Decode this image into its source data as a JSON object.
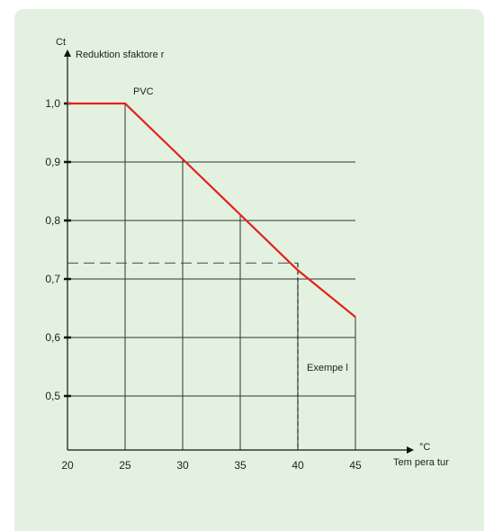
{
  "chart_data": {
    "type": "line",
    "y_unit": "Ct",
    "ylabel": "Reduktion sfaktore r",
    "x_unit": "°C",
    "xlabel": "Tem pera tur",
    "x_ticks": [
      "20",
      "25",
      "30",
      "35",
      "40",
      "45"
    ],
    "y_ticks": [
      "1,0",
      "0,9",
      "0,8",
      "0,7",
      "0,6",
      "0,5"
    ],
    "xlim": [
      20,
      47
    ],
    "ylim": [
      0.4,
      1.05
    ],
    "grid": true,
    "series": [
      {
        "name": "PVC",
        "color": "#e32219",
        "x": [
          20,
          25,
          30,
          35,
          40,
          45
        ],
        "y": [
          1.0,
          1.0,
          0.905,
          0.81,
          0.715,
          0.635
        ]
      }
    ],
    "example": {
      "label": "Exempe l",
      "x": 40,
      "y": 0.715
    }
  }
}
